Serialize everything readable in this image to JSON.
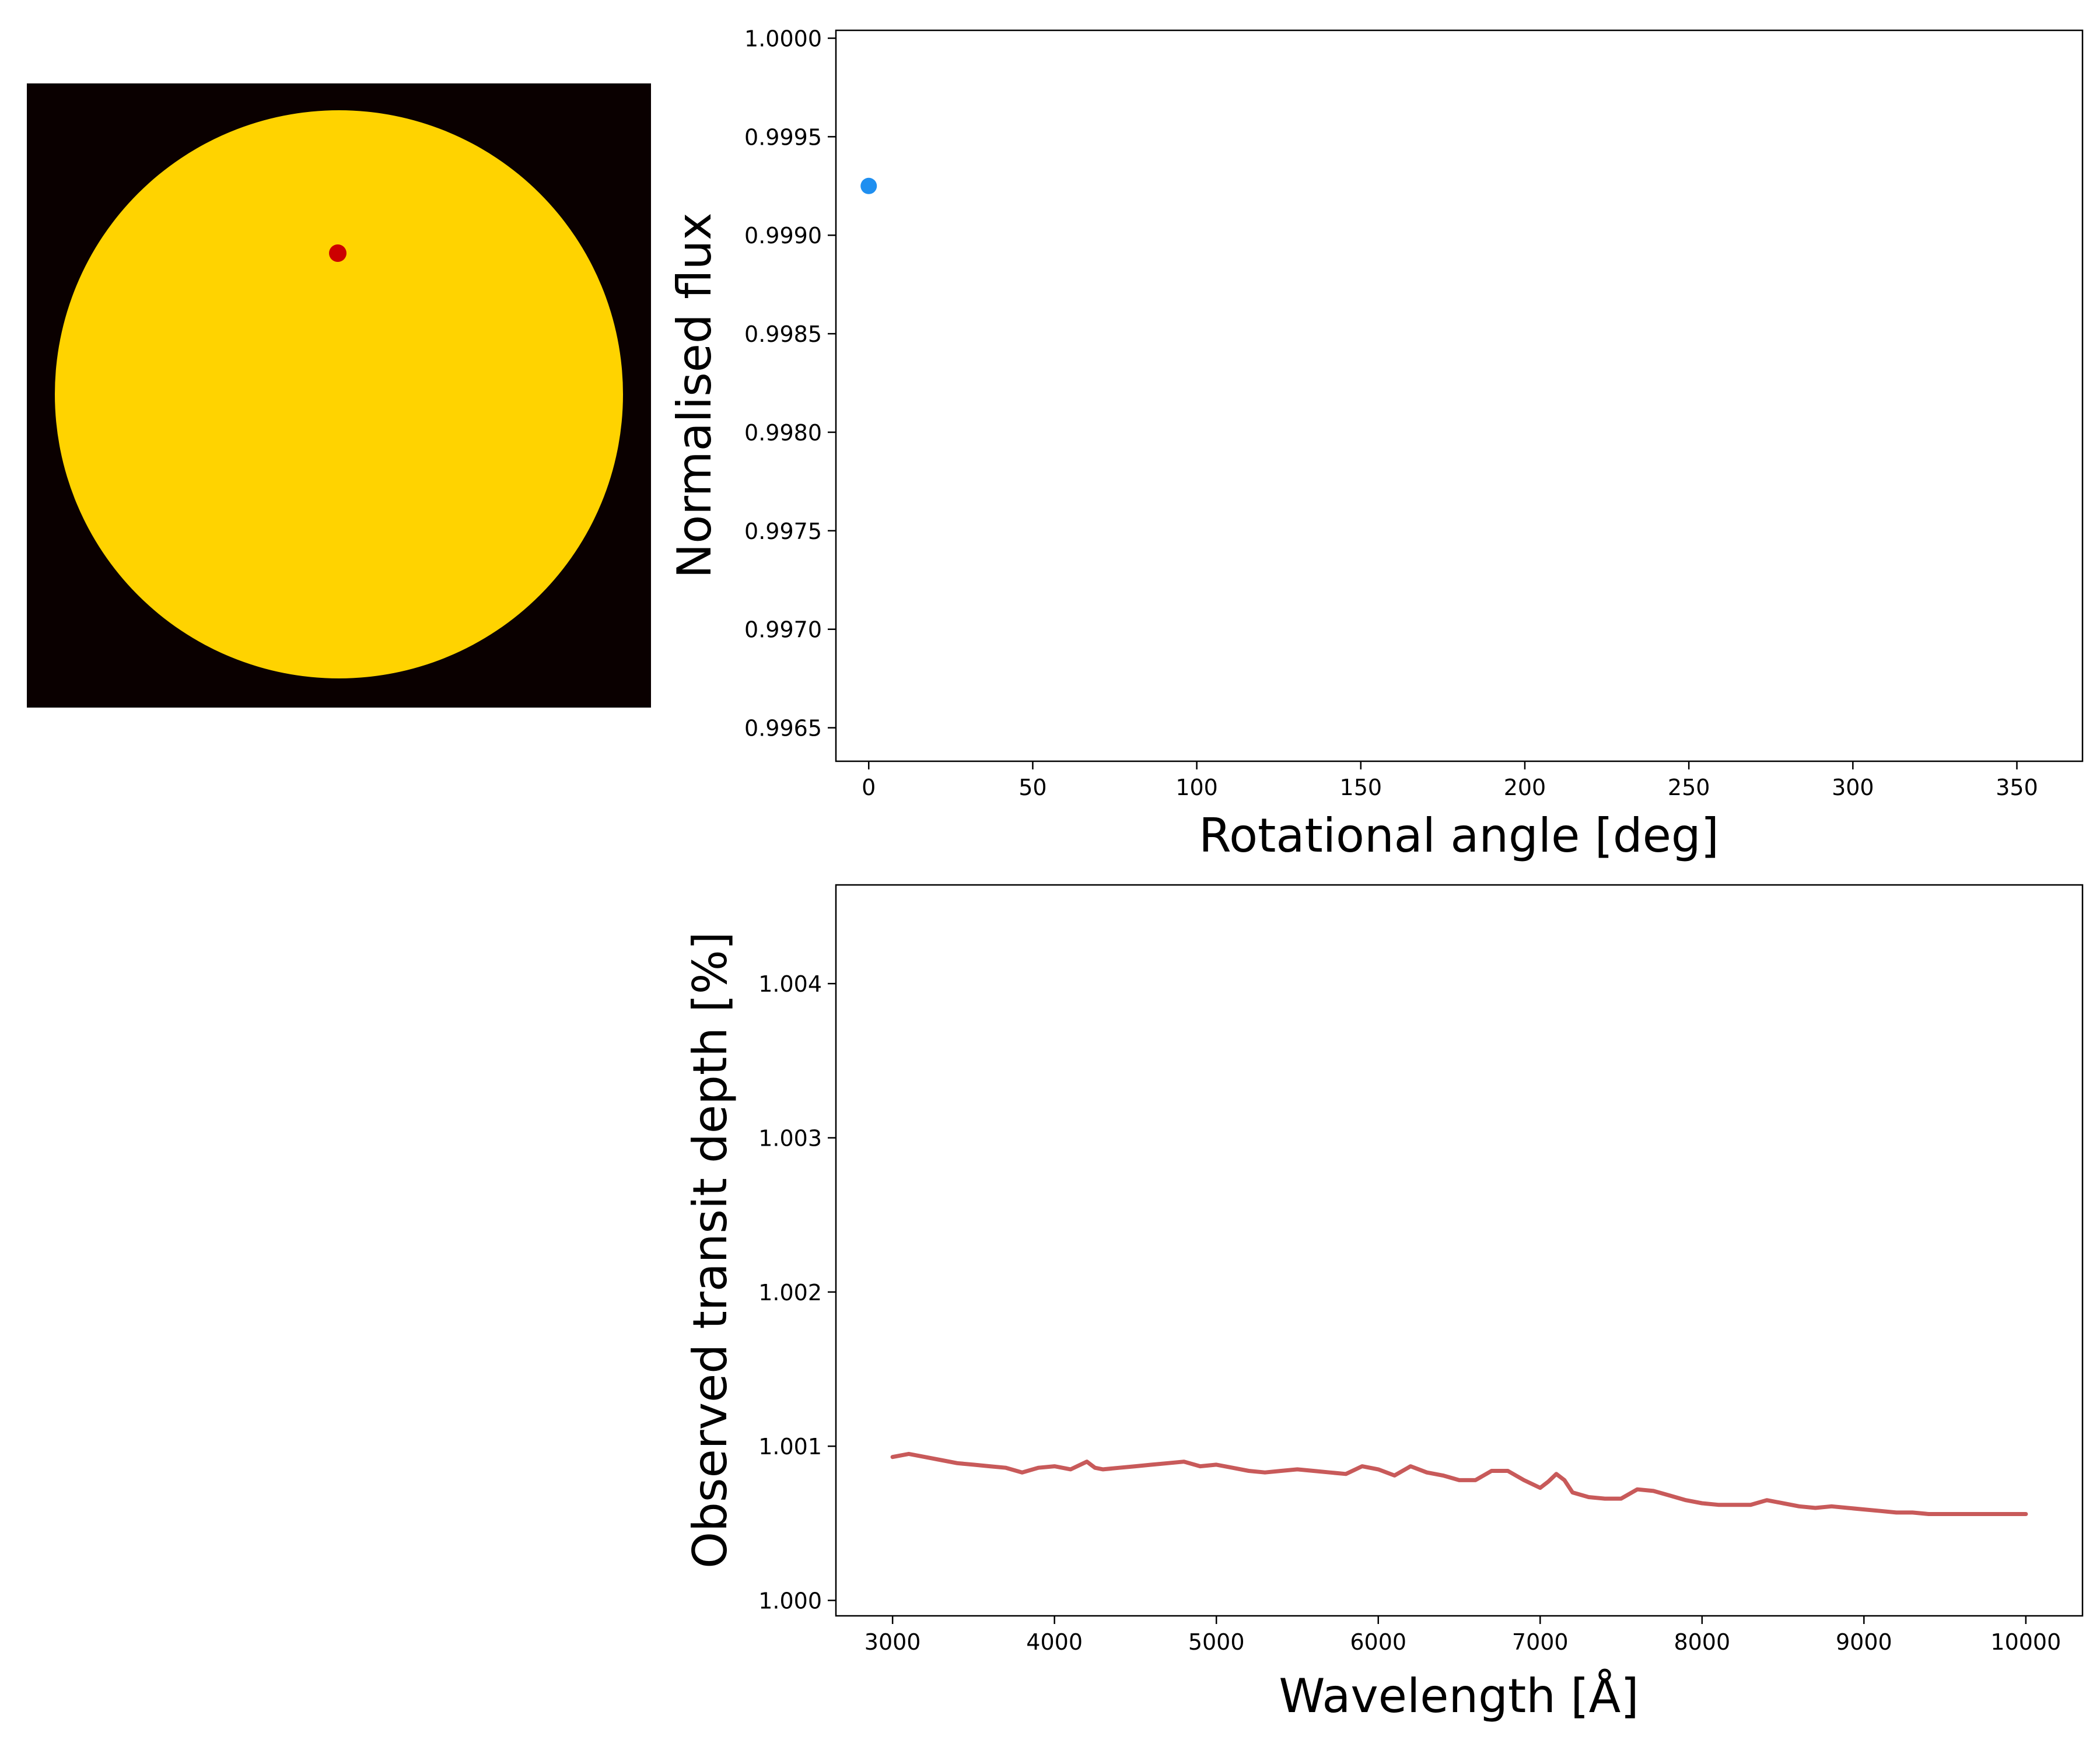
{
  "chart_data": [
    {
      "type": "image",
      "description_free": true,
      "background_color": "#0a0000",
      "star_color": "#ffd300",
      "spot_color": "#cc0000"
    },
    {
      "type": "scatter",
      "xlabel": "Rotational angle [deg]",
      "ylabel": "Normalised flux",
      "xlim": [
        -10,
        370
      ],
      "ylim": [
        0.99633,
        1.00004
      ],
      "xticks": [
        0,
        50,
        100,
        150,
        200,
        250,
        300,
        350
      ],
      "xtick_labels": [
        "0",
        "50",
        "100",
        "150",
        "200",
        "250",
        "300",
        "350"
      ],
      "yticks": [
        0.9965,
        0.997,
        0.9975,
        0.998,
        0.9985,
        0.999,
        0.9995,
        1.0
      ],
      "ytick_labels": [
        "0.9965",
        "0.9970",
        "0.9975",
        "0.9980",
        "0.9985",
        "0.9990",
        "0.9995",
        "1.0000"
      ],
      "points": [
        {
          "x": 0,
          "y": 0.99925
        }
      ],
      "color": "#1f8ff0",
      "grid": false
    },
    {
      "type": "line",
      "xlabel": "Wavelength [Å]",
      "ylabel": "Observed transit depth [%]",
      "xlim": [
        2650,
        10350
      ],
      "ylim": [
        0.9999,
        1.00464
      ],
      "xticks": [
        3000,
        4000,
        5000,
        6000,
        7000,
        8000,
        9000,
        10000
      ],
      "xtick_labels": [
        "3000",
        "4000",
        "5000",
        "6000",
        "7000",
        "8000",
        "9000",
        "10000"
      ],
      "yticks": [
        1.0,
        1.001,
        1.002,
        1.003,
        1.004
      ],
      "ytick_labels": [
        "1.000",
        "1.001",
        "1.002",
        "1.003",
        "1.004"
      ],
      "x": [
        3000,
        3100,
        3200,
        3300,
        3400,
        3500,
        3600,
        3700,
        3800,
        3900,
        4000,
        4100,
        4200,
        4250,
        4300,
        4400,
        4500,
        4600,
        4700,
        4800,
        4900,
        5000,
        5100,
        5200,
        5300,
        5400,
        5500,
        5600,
        5700,
        5800,
        5900,
        6000,
        6100,
        6200,
        6300,
        6400,
        6500,
        6600,
        6700,
        6800,
        6900,
        7000,
        7050,
        7100,
        7150,
        7200,
        7300,
        7400,
        7500,
        7600,
        7700,
        7800,
        7900,
        8000,
        8100,
        8200,
        8300,
        8400,
        8500,
        8600,
        8700,
        8800,
        8900,
        9000,
        9100,
        9200,
        9300,
        9400,
        9500,
        9600,
        9700,
        9800,
        9900,
        10000
      ],
      "y": [
        1.00093,
        1.00095,
        1.00093,
        1.00091,
        1.00089,
        1.00088,
        1.00087,
        1.00086,
        1.00083,
        1.00086,
        1.00087,
        1.00085,
        1.0009,
        1.00086,
        1.00085,
        1.00086,
        1.00087,
        1.00088,
        1.00089,
        1.0009,
        1.00087,
        1.00088,
        1.00086,
        1.00084,
        1.00083,
        1.00084,
        1.00085,
        1.00084,
        1.00083,
        1.00082,
        1.00087,
        1.00085,
        1.00081,
        1.00087,
        1.00083,
        1.00081,
        1.00078,
        1.00078,
        1.00084,
        1.00084,
        1.00078,
        1.00073,
        1.00077,
        1.00082,
        1.00078,
        1.0007,
        1.00067,
        1.00066,
        1.00066,
        1.00072,
        1.00071,
        1.00068,
        1.00065,
        1.00063,
        1.00062,
        1.00062,
        1.00062,
        1.00065,
        1.00063,
        1.00061,
        1.0006,
        1.00061,
        1.0006,
        1.00059,
        1.00058,
        1.00057,
        1.00057,
        1.00056,
        1.00056,
        1.00056,
        1.00056,
        1.00056,
        1.00056,
        1.00056
      ],
      "color": "#c85a5a",
      "grid": false
    }
  ]
}
